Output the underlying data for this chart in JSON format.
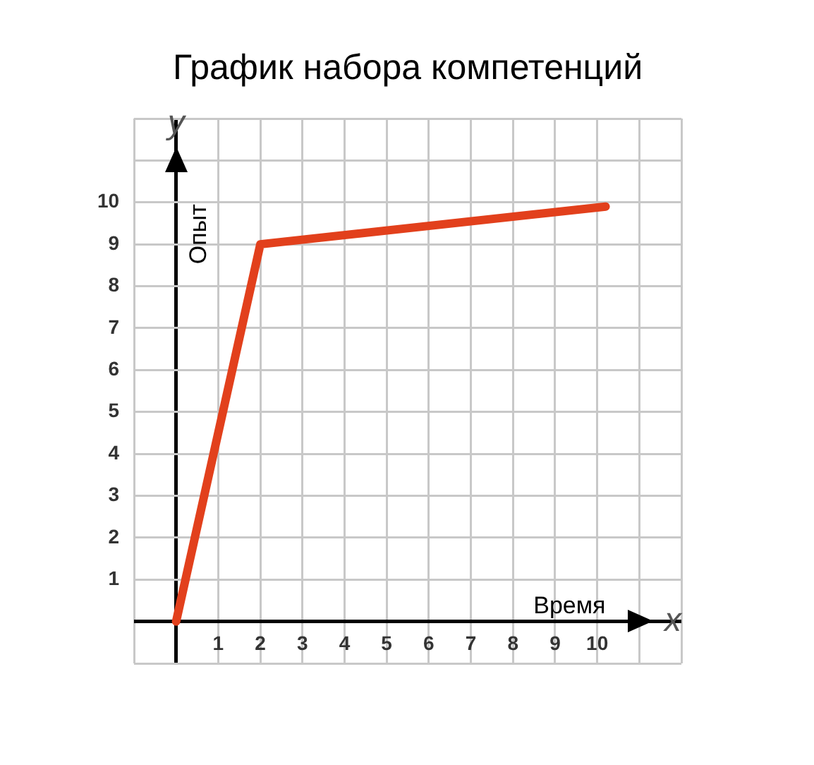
{
  "chart_data": {
    "type": "line",
    "title": "График набора компетенций",
    "xlabel": "Время",
    "ylabel": "Опыт",
    "annotations": [
      "y",
      "x"
    ],
    "x": [
      0,
      2,
      10.2
    ],
    "series": [
      {
        "color": "#e2401c",
        "values": [
          0,
          9,
          9.9
        ]
      }
    ],
    "xlim": [
      -1,
      12
    ],
    "ylim": [
      -1,
      12
    ],
    "xticks": [
      {
        "value": -1,
        "label": null
      },
      {
        "value": 0,
        "label": null
      },
      1,
      2,
      3,
      4,
      5,
      6,
      7,
      8,
      9,
      10,
      {
        "value": 11,
        "label": null
      },
      {
        "value": 12,
        "label": null
      }
    ],
    "yticks": [
      {
        "value": -1,
        "label": null
      },
      {
        "value": 0,
        "label": null
      },
      1,
      2,
      3,
      4,
      5,
      6,
      7,
      8,
      9,
      10,
      {
        "value": 11,
        "label": null
      },
      {
        "value": 12,
        "label": null
      }
    ],
    "grid": true,
    "legend": false,
    "marker": "none",
    "line_style": "solid"
  }
}
